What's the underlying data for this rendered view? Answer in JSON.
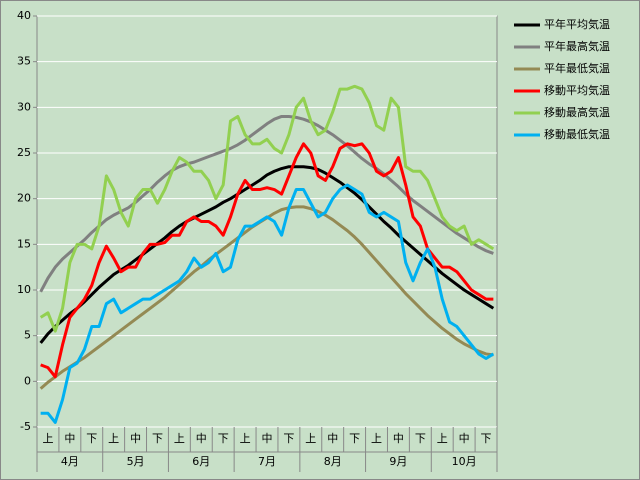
{
  "chart_data": {
    "type": "line",
    "categories": [
      null,
      "上",
      null,
      null,
      "中",
      null,
      null,
      "下",
      null,
      null,
      "上",
      null,
      null,
      "中",
      null,
      null,
      "下",
      null,
      null,
      "上",
      null,
      null,
      "中",
      null,
      null,
      "下",
      null,
      null,
      "上",
      null,
      null,
      "中",
      null,
      null,
      "下",
      null,
      null,
      "上",
      null,
      null,
      "中",
      null,
      null,
      "下",
      null,
      null,
      "上",
      null,
      null,
      "中",
      null,
      null,
      "下",
      null,
      null,
      "上",
      null,
      null,
      "中",
      null,
      null,
      "下",
      null
    ],
    "groups": [
      "4月",
      "5月",
      "6月",
      "7月",
      "8月",
      "9月",
      "10月"
    ],
    "ylim": [
      -5,
      40
    ],
    "yticks": [
      -5,
      0,
      5,
      10,
      15,
      20,
      25,
      30,
      35,
      40
    ],
    "grid": true,
    "series": [
      {
        "name": "平年平均気温",
        "color": "#000000",
        "values": [
          4.2,
          5.2,
          6.0,
          6.7,
          7.4,
          8.0,
          8.7,
          9.5,
          10.3,
          11.0,
          11.7,
          12.2,
          12.7,
          13.3,
          13.9,
          14.5,
          15.1,
          15.7,
          16.4,
          17.0,
          17.5,
          17.9,
          18.3,
          18.7,
          19.1,
          19.6,
          20.0,
          20.5,
          21.0,
          21.5,
          22.0,
          22.6,
          23.0,
          23.3,
          23.5,
          23.5,
          23.5,
          23.4,
          23.2,
          22.8,
          22.3,
          21.8,
          21.2,
          20.6,
          19.9,
          19.1,
          18.3,
          17.5,
          16.8,
          16.0,
          15.3,
          14.6,
          13.9,
          13.2,
          12.5,
          11.8,
          11.2,
          10.6,
          10.0,
          9.5,
          9.0,
          8.5,
          8.0
        ]
      },
      {
        "name": "平年最高気温",
        "color": "#808080",
        "values": [
          9.8,
          11.3,
          12.5,
          13.4,
          14.1,
          14.8,
          15.5,
          16.3,
          17.0,
          17.7,
          18.2,
          18.6,
          19.0,
          19.6,
          20.3,
          21.0,
          21.8,
          22.5,
          23.1,
          23.5,
          23.8,
          24.0,
          24.3,
          24.6,
          24.9,
          25.2,
          25.5,
          25.9,
          26.4,
          27.0,
          27.6,
          28.2,
          28.7,
          29.0,
          29.0,
          28.9,
          28.7,
          28.4,
          28.0,
          27.5,
          27.0,
          26.4,
          25.8,
          25.1,
          24.4,
          23.8,
          23.3,
          22.7,
          22.0,
          21.3,
          20.5,
          19.8,
          19.2,
          18.6,
          18.0,
          17.4,
          16.8,
          16.2,
          15.7,
          15.2,
          14.7,
          14.3,
          14.0
        ]
      },
      {
        "name": "平年最低気温",
        "color": "#948a54",
        "values": [
          -0.8,
          -0.1,
          0.5,
          1.1,
          1.6,
          2.1,
          2.6,
          3.2,
          3.8,
          4.4,
          5.0,
          5.6,
          6.2,
          6.8,
          7.4,
          8.0,
          8.6,
          9.2,
          9.9,
          10.6,
          11.3,
          12.0,
          12.6,
          13.3,
          13.9,
          14.5,
          15.1,
          15.7,
          16.3,
          16.9,
          17.4,
          17.9,
          18.4,
          18.8,
          19.0,
          19.1,
          19.1,
          18.9,
          18.6,
          18.2,
          17.7,
          17.1,
          16.5,
          15.8,
          15.0,
          14.1,
          13.2,
          12.3,
          11.4,
          10.5,
          9.6,
          8.8,
          8.0,
          7.2,
          6.5,
          5.8,
          5.2,
          4.6,
          4.1,
          3.7,
          3.3,
          3.0,
          2.9
        ]
      },
      {
        "name": "移動平均気温",
        "color": "#ff0000",
        "values": [
          1.8,
          1.5,
          0.5,
          4,
          7,
          8,
          9,
          10.5,
          13,
          14.8,
          13.5,
          12,
          12.5,
          12.5,
          14,
          15,
          15,
          15.2,
          16,
          16,
          17.5,
          18,
          17.5,
          17.5,
          17,
          16,
          18,
          20.5,
          22,
          21,
          21,
          21.2,
          21,
          20.5,
          22.5,
          24.5,
          26,
          25,
          22.5,
          22,
          23.5,
          25.5,
          26,
          25.8,
          26,
          25,
          23,
          22.5,
          23,
          24.5,
          21.5,
          18,
          17,
          14.5,
          13.5,
          12.5,
          12.5,
          12,
          11,
          10,
          9.5,
          9,
          9
        ]
      },
      {
        "name": "移動最高気温",
        "color": "#92d050",
        "values": [
          7,
          7.5,
          5.5,
          8,
          13,
          15,
          15,
          14.5,
          17,
          22.5,
          21,
          18.5,
          17,
          20,
          21,
          21,
          19.5,
          21,
          23,
          24.5,
          24,
          23,
          23,
          22,
          20,
          21.5,
          28.5,
          29,
          27,
          26,
          26,
          26.5,
          25.5,
          25,
          27,
          30,
          31,
          28.5,
          27,
          27.5,
          29.5,
          32,
          32,
          32.3,
          32,
          30.5,
          28,
          27.5,
          31,
          30,
          23.5,
          23,
          23,
          22,
          20,
          18,
          17,
          16.5,
          17,
          15,
          15.5,
          15,
          14.5
        ]
      },
      {
        "name": "移動最低気温",
        "color": "#00b0f0",
        "values": [
          -3.5,
          -3.5,
          -4.5,
          -2,
          1.5,
          2,
          3.5,
          6,
          6,
          8.5,
          9,
          7.5,
          8,
          8.5,
          9,
          9,
          9.5,
          10,
          10.5,
          11,
          12,
          13.5,
          12.5,
          13,
          14,
          12,
          12.5,
          15.5,
          17,
          17,
          17.5,
          18,
          17.5,
          16,
          19,
          21,
          21,
          19.5,
          18,
          18.5,
          20,
          21,
          21.5,
          21,
          20.5,
          18.5,
          18,
          18.5,
          18,
          17.5,
          13,
          11,
          13,
          14.5,
          12.5,
          9,
          6.5,
          6,
          5,
          4,
          3,
          2.5,
          3
        ]
      }
    ]
  }
}
